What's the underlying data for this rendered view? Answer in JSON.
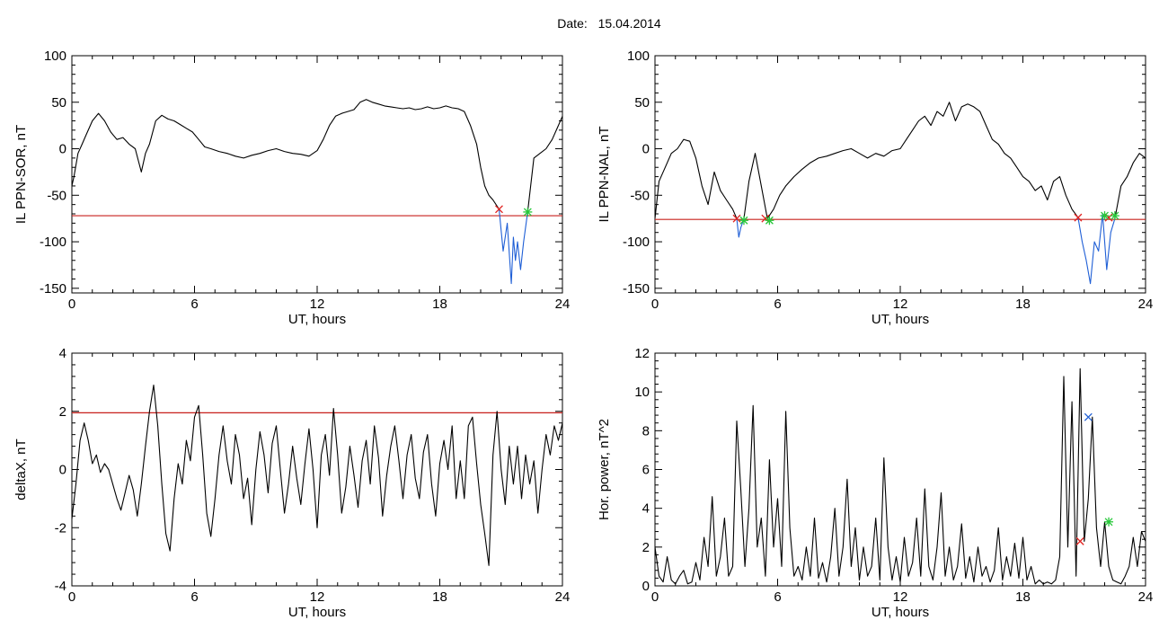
{
  "header": {
    "date_label": "Date:",
    "date_value": "15.04.2014"
  },
  "chart_data": [
    {
      "id": "sor",
      "type": "line",
      "title": "",
      "xlabel": "UT, hours",
      "ylabel": "IL PPN-SOR, nT",
      "xlim": [
        0,
        24
      ],
      "ylim": [
        -155,
        100
      ],
      "xticks": [
        0,
        6,
        12,
        18,
        24
      ],
      "yticks": [
        -150,
        -100,
        -50,
        0,
        50,
        100
      ],
      "threshold": -72,
      "series": [
        {
          "color": "#000000",
          "x": [
            0,
            0.1,
            0.3,
            0.5,
            0.7,
            1.0,
            1.3,
            1.6,
            1.9,
            2.2,
            2.5,
            2.8,
            3.1,
            3.4,
            3.6,
            3.8,
            4.1,
            4.4,
            4.7,
            5.0,
            5.3,
            5.6,
            5.9,
            6.2,
            6.5,
            6.8,
            7.2,
            7.6,
            8.0,
            8.4,
            8.8,
            9.2,
            9.6,
            10.0,
            10.4,
            10.8,
            11.2,
            11.6,
            12.0,
            12.3,
            12.6,
            12.9,
            13.2,
            13.5,
            13.8,
            14.1,
            14.4,
            14.7,
            15.0,
            15.3,
            15.6,
            15.9,
            16.2,
            16.5,
            16.8,
            17.1,
            17.4,
            17.7,
            18.0,
            18.3,
            18.6,
            18.9,
            19.2,
            19.5,
            19.8,
            20.0,
            20.2,
            20.4,
            20.6,
            20.9
          ],
          "y": [
            -40,
            -30,
            -5,
            5,
            15,
            30,
            38,
            30,
            18,
            10,
            12,
            5,
            0,
            -25,
            -5,
            5,
            30,
            36,
            32,
            30,
            26,
            22,
            18,
            10,
            2,
            0,
            -3,
            -5,
            -8,
            -10,
            -7,
            -5,
            -2,
            0,
            -3,
            -5,
            -6,
            -8,
            -2,
            10,
            25,
            35,
            38,
            40,
            42,
            50,
            53,
            50,
            48,
            46,
            45,
            44,
            43,
            44,
            42,
            43,
            45,
            43,
            44,
            46,
            44,
            43,
            40,
            25,
            5,
            -20,
            -40,
            -50,
            -55,
            -65
          ]
        },
        {
          "color": "#1f5fd6",
          "x": [
            20.9,
            21.1,
            21.3,
            21.5,
            21.6,
            21.7,
            21.8,
            21.95,
            22.1,
            22.3
          ],
          "y": [
            -65,
            -110,
            -80,
            -145,
            -95,
            -120,
            -100,
            -130,
            -100,
            -68
          ]
        },
        {
          "color": "#000000",
          "x": [
            22.3,
            22.6,
            22.9,
            23.2,
            23.5,
            23.8,
            24.0
          ],
          "y": [
            -68,
            -10,
            -5,
            0,
            10,
            25,
            35
          ]
        }
      ],
      "markers": [
        {
          "x": 20.9,
          "y": -65,
          "color": "#e0201e",
          "symbol": "x"
        },
        {
          "x": 22.3,
          "y": -68,
          "color": "#27c83a",
          "symbol": "*"
        }
      ]
    },
    {
      "id": "nal",
      "type": "line",
      "title": "",
      "xlabel": "UT, hours",
      "ylabel": "IL PPN-NAL, nT",
      "xlim": [
        0,
        24
      ],
      "ylim": [
        -155,
        100
      ],
      "xticks": [
        0,
        6,
        12,
        18,
        24
      ],
      "yticks": [
        -150,
        -100,
        -50,
        0,
        50,
        100
      ],
      "threshold": -76,
      "series": [
        {
          "color": "#000000",
          "x": [
            0,
            0.2,
            0.5,
            0.8,
            1.1,
            1.4,
            1.7,
            2.0,
            2.3,
            2.6,
            2.9,
            3.2,
            3.5,
            3.8,
            4.0
          ],
          "y": [
            -75,
            -35,
            -20,
            -5,
            0,
            10,
            8,
            -10,
            -40,
            -60,
            -25,
            -45,
            -55,
            -65,
            -75
          ]
        },
        {
          "color": "#1f5fd6",
          "x": [
            4.0,
            4.1,
            4.2,
            4.35
          ],
          "y": [
            -75,
            -95,
            -85,
            -75
          ]
        },
        {
          "color": "#000000",
          "x": [
            4.35,
            4.6,
            4.9,
            5.2,
            5.5
          ],
          "y": [
            -75,
            -35,
            -5,
            -40,
            -75
          ]
        },
        {
          "color": "#000000",
          "x": [
            5.5,
            5.8,
            6.1,
            6.4,
            6.8,
            7.2,
            7.6,
            8.0,
            8.4,
            8.8,
            9.2,
            9.6,
            10.0,
            10.4,
            10.8,
            11.2,
            11.6,
            12.0,
            12.3,
            12.6,
            12.9,
            13.2,
            13.5,
            13.8,
            14.1,
            14.4,
            14.7,
            15.0,
            15.3,
            15.6,
            15.9,
            16.2,
            16.5,
            16.8,
            17.1,
            17.4,
            17.7,
            18.0,
            18.3,
            18.6,
            18.9,
            19.2,
            19.5,
            19.8,
            20.1,
            20.4,
            20.7
          ],
          "y": [
            -75,
            -65,
            -50,
            -40,
            -30,
            -22,
            -15,
            -10,
            -8,
            -5,
            -2,
            0,
            -5,
            -10,
            -5,
            -8,
            -2,
            0,
            10,
            20,
            30,
            35,
            25,
            40,
            35,
            50,
            30,
            45,
            48,
            45,
            40,
            25,
            10,
            5,
            -5,
            -10,
            -20,
            -30,
            -35,
            -45,
            -40,
            -55,
            -35,
            -30,
            -50,
            -65,
            -74
          ]
        },
        {
          "color": "#1f5fd6",
          "x": [
            20.7,
            20.9,
            21.1,
            21.3,
            21.5,
            21.7,
            21.9,
            22.1,
            22.3,
            22.5
          ],
          "y": [
            -74,
            -100,
            -120,
            -145,
            -100,
            -110,
            -70,
            -130,
            -90,
            -75
          ]
        },
        {
          "color": "#000000",
          "x": [
            22.5,
            22.8,
            23.1,
            23.4,
            23.7,
            24.0
          ],
          "y": [
            -75,
            -40,
            -30,
            -15,
            -5,
            -10
          ]
        }
      ],
      "markers": [
        {
          "x": 4.0,
          "y": -75,
          "color": "#e0201e",
          "symbol": "x"
        },
        {
          "x": 5.4,
          "y": -75,
          "color": "#e0201e",
          "symbol": "x"
        },
        {
          "x": 4.35,
          "y": -77,
          "color": "#27c83a",
          "symbol": "*"
        },
        {
          "x": 5.6,
          "y": -77,
          "color": "#27c83a",
          "symbol": "*"
        },
        {
          "x": 20.7,
          "y": -74,
          "color": "#e0201e",
          "symbol": "x"
        },
        {
          "x": 22.2,
          "y": -74,
          "color": "#e0201e",
          "symbol": "x"
        },
        {
          "x": 22.0,
          "y": -72,
          "color": "#27c83a",
          "symbol": "*"
        },
        {
          "x": 22.5,
          "y": -72,
          "color": "#27c83a",
          "symbol": "*"
        }
      ]
    },
    {
      "id": "deltax",
      "type": "line",
      "title": "",
      "xlabel": "UT, hours",
      "ylabel": "deltaX, nT",
      "xlim": [
        0,
        24
      ],
      "ylim": [
        -4,
        4
      ],
      "xticks": [
        0,
        6,
        12,
        18,
        24
      ],
      "yticks": [
        -4,
        -2,
        0,
        2,
        4
      ],
      "threshold": 1.95,
      "series": [
        {
          "color": "#000000",
          "x": [
            0,
            0.2,
            0.4,
            0.6,
            0.8,
            1.0,
            1.2,
            1.4,
            1.6,
            1.8,
            2.0,
            2.2,
            2.4,
            2.6,
            2.8,
            3.0,
            3.2,
            3.4,
            3.6,
            3.8,
            4.0,
            4.2,
            4.4,
            4.6,
            4.8,
            5.0,
            5.2,
            5.4,
            5.6,
            5.8,
            6.0,
            6.2,
            6.4,
            6.6,
            6.8,
            7.0,
            7.2,
            7.4,
            7.6,
            7.8,
            8.0,
            8.2,
            8.4,
            8.6,
            8.8,
            9.0,
            9.2,
            9.4,
            9.6,
            9.8,
            10.0,
            10.2,
            10.4,
            10.6,
            10.8,
            11.0,
            11.2,
            11.4,
            11.6,
            11.8,
            12.0,
            12.2,
            12.4,
            12.6,
            12.8,
            13.0,
            13.2,
            13.4,
            13.6,
            13.8,
            14.0,
            14.2,
            14.4,
            14.6,
            14.8,
            15.0,
            15.2,
            15.4,
            15.6,
            15.8,
            16.0,
            16.2,
            16.4,
            16.6,
            16.8,
            17.0,
            17.2,
            17.4,
            17.6,
            17.8,
            18.0,
            18.2,
            18.4,
            18.6,
            18.8,
            19.0,
            19.2,
            19.4,
            19.6,
            19.8,
            20.0,
            20.2,
            20.4,
            20.6,
            20.8,
            21.0,
            21.2,
            21.4,
            21.6,
            21.8,
            22.0,
            22.2,
            22.4,
            22.6,
            22.8,
            23.0,
            23.2,
            23.4,
            23.6,
            23.8,
            24.0
          ],
          "y": [
            -1.7,
            -0.5,
            1.0,
            1.6,
            1.0,
            0.2,
            0.5,
            -0.1,
            0.2,
            0.0,
            -0.5,
            -1.0,
            -1.4,
            -0.8,
            -0.2,
            -0.7,
            -1.6,
            -0.5,
            0.8,
            2.0,
            2.9,
            1.5,
            -0.5,
            -2.2,
            -2.8,
            -1.0,
            0.2,
            -0.5,
            1.0,
            0.3,
            1.8,
            2.2,
            0.5,
            -1.5,
            -2.3,
            -1.0,
            0.5,
            1.5,
            0.3,
            -0.5,
            1.2,
            0.5,
            -1.0,
            -0.3,
            -1.9,
            0.0,
            1.3,
            0.5,
            -0.8,
            0.9,
            1.5,
            0.0,
            -1.5,
            -0.5,
            0.8,
            -0.3,
            -1.2,
            0.2,
            1.4,
            0.0,
            -2.0,
            0.5,
            1.2,
            -0.2,
            2.1,
            0.5,
            -1.5,
            -0.6,
            0.8,
            -0.2,
            -1.3,
            0.3,
            1.0,
            -0.5,
            1.5,
            0.4,
            -1.6,
            -0.2,
            0.8,
            1.5,
            0.3,
            -1.0,
            0.5,
            1.2,
            -0.3,
            -1.0,
            0.6,
            1.2,
            -0.5,
            -1.6,
            0.2,
            1.0,
            0.0,
            1.5,
            -1.0,
            0.3,
            -1.0,
            1.5,
            1.8,
            0.2,
            -1.2,
            -2.2,
            -3.3,
            0.5,
            2.0,
            0.0,
            -1.2,
            0.8,
            -0.5,
            0.8,
            -1.0,
            0.5,
            -0.5,
            0.3,
            -1.5,
            0.0,
            1.2,
            0.5,
            1.5,
            1.0,
            1.6
          ]
        }
      ],
      "markers": []
    },
    {
      "id": "power",
      "type": "line",
      "title": "",
      "xlabel": "UT, hours",
      "ylabel": "Hor. power, nT^2",
      "xlim": [
        0,
        24
      ],
      "ylim": [
        0,
        12
      ],
      "xticks": [
        0,
        6,
        12,
        18,
        24
      ],
      "yticks": [
        0,
        2,
        4,
        6,
        8,
        10,
        12
      ],
      "threshold": null,
      "series": [
        {
          "color": "#000000",
          "x": [
            0,
            0.2,
            0.4,
            0.6,
            0.8,
            1.0,
            1.2,
            1.4,
            1.6,
            1.8,
            2.0,
            2.2,
            2.4,
            2.6,
            2.8,
            3.0,
            3.2,
            3.4,
            3.6,
            3.8,
            4.0,
            4.2,
            4.4,
            4.6,
            4.8,
            5.0,
            5.2,
            5.4,
            5.6,
            5.8,
            6.0,
            6.2,
            6.4,
            6.6,
            6.8,
            7.0,
            7.2,
            7.4,
            7.6,
            7.8,
            8.0,
            8.2,
            8.4,
            8.6,
            8.8,
            9.0,
            9.2,
            9.4,
            9.6,
            9.8,
            10.0,
            10.2,
            10.4,
            10.6,
            10.8,
            11.0,
            11.2,
            11.4,
            11.6,
            11.8,
            12.0,
            12.2,
            12.4,
            12.6,
            12.8,
            13.0,
            13.2,
            13.4,
            13.6,
            13.8,
            14.0,
            14.2,
            14.4,
            14.6,
            14.8,
            15.0,
            15.2,
            15.4,
            15.6,
            15.8,
            16.0,
            16.2,
            16.4,
            16.6,
            16.8,
            17.0,
            17.2,
            17.4,
            17.6,
            17.8,
            18.0,
            18.2,
            18.4,
            18.6,
            18.8,
            19.0,
            19.2,
            19.4,
            19.6,
            19.8,
            20.0,
            20.2,
            20.4,
            20.6,
            20.8,
            21.0,
            21.2,
            21.4,
            21.6,
            21.8,
            22.0,
            22.2,
            22.4,
            22.6,
            22.8,
            23.0,
            23.2,
            23.4,
            23.6,
            23.8,
            24.0
          ],
          "y": [
            2.0,
            0.5,
            0.2,
            1.5,
            0.3,
            0.1,
            0.5,
            0.8,
            0.1,
            0.2,
            1.2,
            0.3,
            2.5,
            1.0,
            4.6,
            0.5,
            1.5,
            3.5,
            0.5,
            1.0,
            8.5,
            5.0,
            1.0,
            4.0,
            9.3,
            2.0,
            3.5,
            0.5,
            6.5,
            2.0,
            4.5,
            1.0,
            9.0,
            3.0,
            0.5,
            1.0,
            0.3,
            2.0,
            0.5,
            3.5,
            0.4,
            1.2,
            0.2,
            1.5,
            4.0,
            0.5,
            2.0,
            5.5,
            1.0,
            3.0,
            0.3,
            2.0,
            0.5,
            1.0,
            3.5,
            0.3,
            6.6,
            2.0,
            0.3,
            1.5,
            0.2,
            2.5,
            0.5,
            1.2,
            3.5,
            0.5,
            5.0,
            1.0,
            0.3,
            2.0,
            4.8,
            0.5,
            2.0,
            0.3,
            1.0,
            3.2,
            0.4,
            1.5,
            0.2,
            2.0,
            0.5,
            1.0,
            0.2,
            0.8,
            3.0,
            0.3,
            1.5,
            0.5,
            2.2,
            0.4,
            2.5,
            0.3,
            1.0,
            0.1,
            0.3,
            0.1,
            0.2,
            0.1,
            0.3,
            1.5,
            10.8,
            2.0,
            9.5,
            0.5,
            11.2,
            2.3,
            4.5,
            8.7,
            3.0,
            1.0,
            3.3,
            1.0,
            0.3,
            0.2,
            0.1,
            0.5,
            1.0,
            2.5,
            1.0,
            2.8,
            2.3
          ]
        }
      ],
      "markers": [
        {
          "x": 20.8,
          "y": 2.3,
          "color": "#e0201e",
          "symbol": "x"
        },
        {
          "x": 21.2,
          "y": 8.7,
          "color": "#1f5fd6",
          "symbol": "x"
        },
        {
          "x": 22.2,
          "y": 3.3,
          "color": "#27c83a",
          "symbol": "*"
        }
      ]
    }
  ]
}
